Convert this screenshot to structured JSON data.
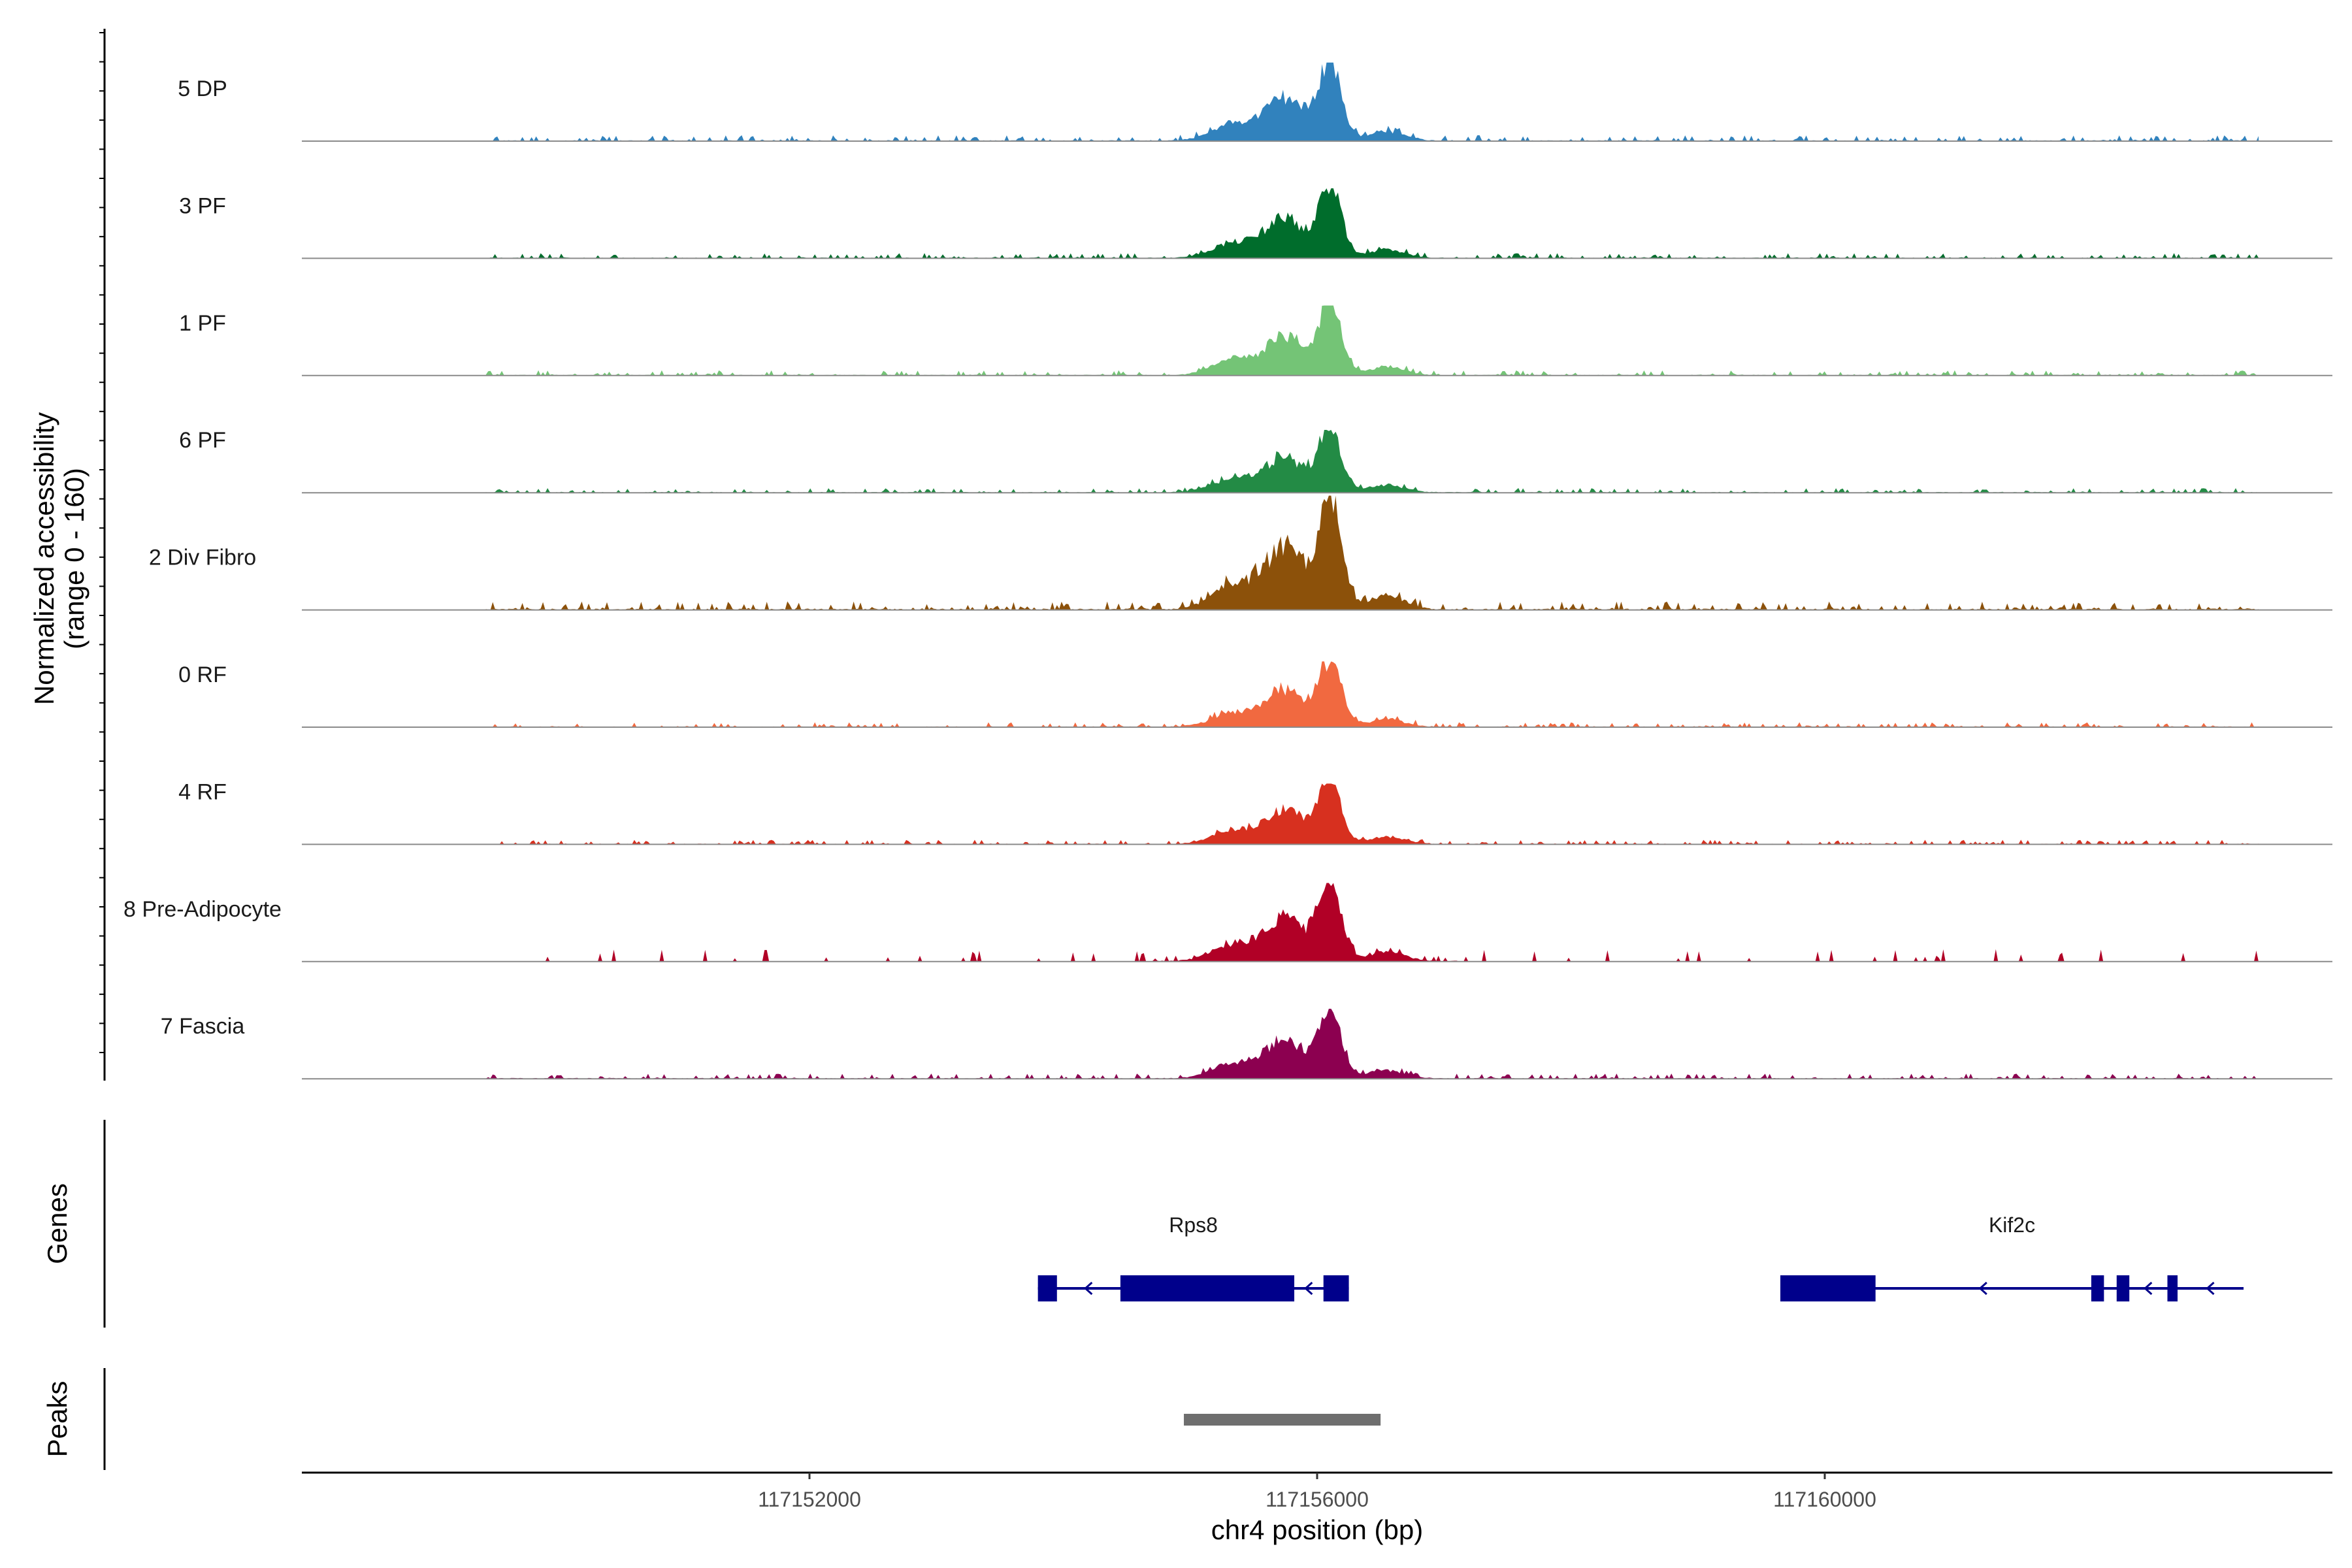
{
  "chart_data": {
    "type": "area",
    "title": "",
    "ylabel": "Normalized accessibility",
    "ylabel_range": "(range 0 - 160)",
    "ylim": [
      0,
      160
    ],
    "xlabel": "chr4 position (bp)",
    "xlim": [
      117148000,
      117164000
    ],
    "x_ticks": [
      117152000,
      117156000,
      117160000
    ],
    "x_tick_labels": [
      "117152000",
      "117156000",
      "117160000"
    ],
    "grid": false,
    "peak_summit_bp": 117156100,
    "secondary_summit_bp": 117155750,
    "tracks": [
      {
        "name": "5 DP",
        "color": "#3182bd",
        "peak_height": 110
      },
      {
        "name": "3 PF",
        "color": "#006d2c",
        "peak_height": 98
      },
      {
        "name": "1 PF",
        "color": "#74c476",
        "peak_height": 98
      },
      {
        "name": "6 PF",
        "color": "#238b45",
        "peak_height": 88
      },
      {
        "name": "2 Div Fibro",
        "color": "#8c510a",
        "peak_height": 160
      },
      {
        "name": "0 RF",
        "color": "#f16940",
        "peak_height": 92
      },
      {
        "name": "4 RF",
        "color": "#d7301f",
        "peak_height": 85
      },
      {
        "name": "8 Pre-Adipocyte",
        "color": "#b10026",
        "peak_height": 110
      },
      {
        "name": "7 Fascia",
        "color": "#8c0050",
        "peak_height": 98
      }
    ],
    "genes_panel_label": "Genes",
    "genes": [
      {
        "name": "Rps8",
        "start": 117153800,
        "end": 117156250,
        "strand": "-",
        "color": "#00008b",
        "exons": [
          [
            117153800,
            117153950
          ],
          [
            117154450,
            117155820
          ],
          [
            117156050,
            117156250
          ]
        ]
      },
      {
        "name": "Kif2c",
        "start": 117159650,
        "end": 117163300,
        "strand": "-",
        "color": "#00008b",
        "exons": [
          [
            117159650,
            117160400
          ],
          [
            117162100,
            117162200
          ],
          [
            117162300,
            117162400
          ],
          [
            117162700,
            117162780
          ]
        ]
      }
    ],
    "peaks_panel_label": "Peaks",
    "peaks": [
      {
        "start": 117154950,
        "end": 117156500,
        "color": "#6e6e6e"
      }
    ]
  }
}
